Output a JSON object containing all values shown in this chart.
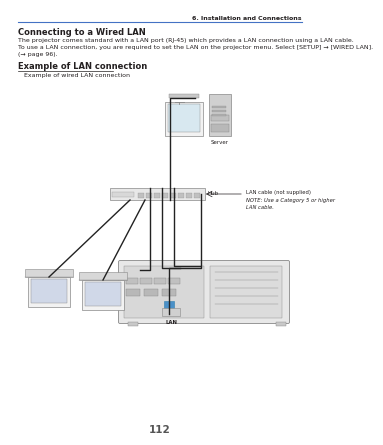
{
  "page_number": "112",
  "chapter_header": "6. Installation and Connections",
  "section_title": "Connecting to a Wired LAN",
  "body_text_1": "The projector comes standard with a LAN port (RJ-45) which provides a LAN connection using a LAN cable.",
  "body_text_2": "To use a LAN connection, you are required to set the LAN on the projector menu. Select [SETUP] → [WIRED LAN].",
  "body_text_3": "(→ page 96).",
  "example_title": "Example of LAN connection",
  "example_subtitle": "   Example of wired LAN connection",
  "label_server": "Server",
  "label_hub": "Hub",
  "label_lan_cable": "LAN cable (not supplied)",
  "label_note": "NOTE: Use a Category 5 or higher\nLAN cable.",
  "label_lan": "LAN",
  "bg_color": "#ffffff",
  "header_line_color": "#4472c4",
  "text_color": "#231f20",
  "med_gray": "#888888",
  "dark_gray": "#555555",
  "line_color": "#333333",
  "light_fill": "#f2f2f2",
  "dark_fill": "#c8c8c8",
  "blue_accent": "#4a90c8"
}
